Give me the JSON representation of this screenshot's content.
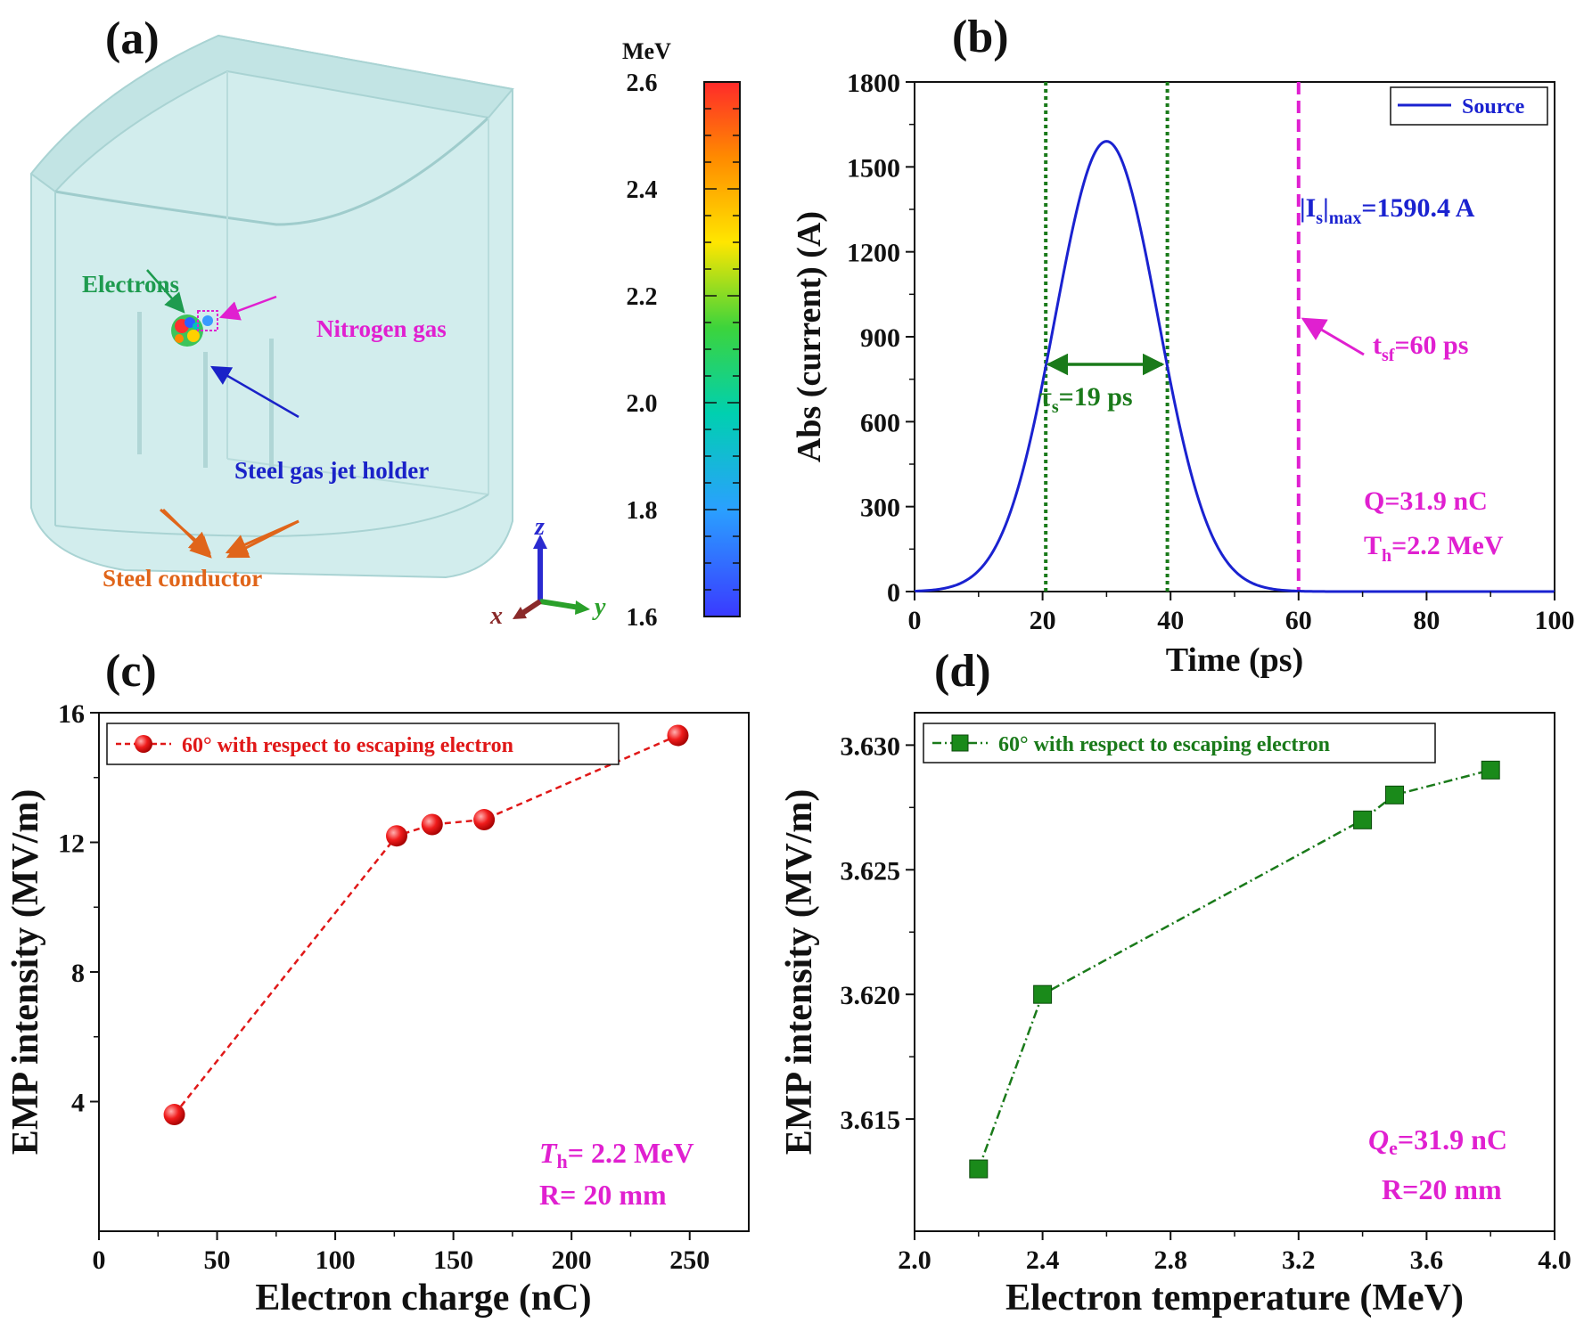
{
  "panel_a": {
    "label": "(a)",
    "annotations": {
      "electrons": "Electrons",
      "nitrogen": "Nitrogen gas",
      "holder": "Steel gas jet holder",
      "conductor": "Steel conductor"
    },
    "axes": {
      "x": "x",
      "y": "y",
      "z": "z"
    },
    "colorbar": {
      "unit": "MeV",
      "ticks": [
        "2.6",
        "2.4",
        "2.2",
        "2.0",
        "1.8",
        "1.6"
      ],
      "min": 1.6,
      "max": 2.6
    },
    "colors": {
      "chamber_fill": "#cfe9e9",
      "chamber_stroke": "#a9d3d3",
      "electrons_label": "#1e9b4f",
      "nitrogen_label": "#e020d0",
      "holder_label": "#1a22c8",
      "conductor_label": "#e0651a"
    }
  },
  "chart_data": [
    {
      "panel": "(b)",
      "type": "line",
      "xlabel": "Time (ps)",
      "ylabel": "Abs (current) (A)",
      "xlim": [
        0,
        100
      ],
      "ylim": [
        0,
        1800
      ],
      "xticks": [
        0,
        20,
        40,
        60,
        80,
        100
      ],
      "yticks": [
        0,
        300,
        600,
        900,
        1200,
        1500,
        1800
      ],
      "series": [
        {
          "name": "Source",
          "color": "#1a22d0",
          "peak": 1590.4,
          "center": 30,
          "fwhm": 19
        }
      ],
      "vlines": [
        {
          "x": 20.5,
          "color": "#1a7a1a",
          "style": "dotted"
        },
        {
          "x": 39.5,
          "color": "#1a7a1a",
          "style": "dotted"
        },
        {
          "x": 60,
          "color": "#e020d0",
          "style": "dashed"
        }
      ],
      "annotations": {
        "tau_base": "τ",
        "tau_sub": "s",
        "tau_rest": "=19 ps",
        "tsf_base": "t",
        "tsf_sub": "sf",
        "tsf_rest": "=60 ps",
        "imax_pre": "|I",
        "imax_sub1": "s",
        "imax_mid": "|",
        "imax_sub2": "max",
        "imax_rest": "=1590.4 A",
        "q_text": "Q=31.9 nC",
        "th_base": "T",
        "th_sub": "h",
        "th_rest": "=2.2 MeV"
      }
    },
    {
      "panel": "(c)",
      "type": "line",
      "xlabel": "Electron charge (nC)",
      "ylabel": "EMP intensity (MV/m)",
      "xlim": [
        0,
        275
      ],
      "ylim": [
        0,
        16
      ],
      "xticks": [
        0,
        50,
        100,
        150,
        200,
        250
      ],
      "yticks": [
        4,
        8,
        12,
        16
      ],
      "series": [
        {
          "name": "60° with respect to escaping electron",
          "color": "#e01818",
          "x": [
            31.9,
            126,
            141,
            163,
            245
          ],
          "y": [
            3.6,
            12.2,
            12.55,
            12.7,
            15.3
          ]
        }
      ],
      "annotations": {
        "th_base": "T",
        "th_sub": "h",
        "th_rest": "= 2.2 MeV",
        "r_text": "R= 20 mm"
      }
    },
    {
      "panel": "(d)",
      "type": "line",
      "xlabel": "Electron temperature (MeV)",
      "ylabel": "EMP intensity (MV/m)",
      "xlim": [
        2.0,
        4.0
      ],
      "ylim": [
        3.6105,
        3.6313
      ],
      "xticks": [
        "2.0",
        "2.4",
        "2.8",
        "3.2",
        "3.6",
        "4.0"
      ],
      "yticks": [
        "3.615",
        "3.620",
        "3.625",
        "3.630"
      ],
      "series": [
        {
          "name": "60° with respect to escaping electron",
          "color": "#1a7a1a",
          "x": [
            2.2,
            2.4,
            3.4,
            3.5,
            3.8
          ],
          "y": [
            3.613,
            3.62,
            3.627,
            3.628,
            3.629
          ]
        }
      ],
      "annotations": {
        "qe_base": "Q",
        "qe_sub": "e",
        "qe_rest": "=31.9 nC",
        "r_text": "R=20 mm"
      }
    }
  ]
}
